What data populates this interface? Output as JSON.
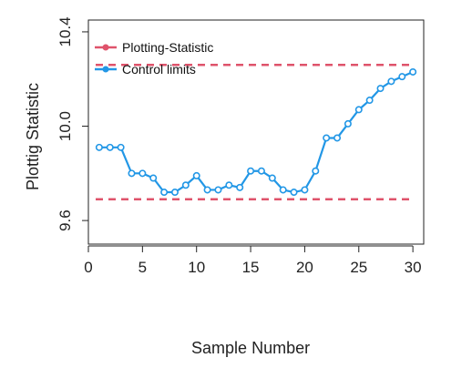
{
  "chart_data": {
    "type": "line",
    "title": "",
    "xlabel": "Sample Number",
    "ylabel": "Plottig Statistic",
    "xlim": [
      0,
      31
    ],
    "ylim": [
      9.5,
      10.45
    ],
    "x_ticks": [
      0,
      5,
      10,
      15,
      20,
      25,
      30
    ],
    "x_tick_labels": [
      "0",
      "5",
      "10",
      "15",
      "20",
      "25",
      "30"
    ],
    "y_ticks": [
      9.6,
      10.0,
      10.4
    ],
    "y_tick_labels": [
      "9.6",
      "10.0",
      "10.4"
    ],
    "grid": false,
    "legend_position": "top-left",
    "legend": [
      {
        "label": "Plotting-Statistic",
        "color": "#df536b"
      },
      {
        "label": "Control limits",
        "color": "#2297e6"
      }
    ],
    "series": [
      {
        "name": "Control limits",
        "color": "#2297e6",
        "x": [
          1,
          2,
          3,
          4,
          5,
          6,
          7,
          8,
          9,
          10,
          11,
          12,
          13,
          14,
          15,
          16,
          17,
          18,
          19,
          20,
          21,
          22,
          23,
          24,
          25,
          26,
          27,
          28,
          29,
          30
        ],
        "values": [
          9.91,
          9.91,
          9.91,
          9.8,
          9.8,
          9.78,
          9.72,
          9.72,
          9.75,
          9.79,
          9.73,
          9.73,
          9.75,
          9.74,
          9.81,
          9.81,
          9.78,
          9.73,
          9.72,
          9.73,
          9.81,
          9.95,
          9.95,
          10.01,
          10.07,
          10.11,
          10.16,
          10.19,
          10.21,
          10.23
        ]
      }
    ],
    "control_limits": {
      "upper": 10.26,
      "lower": 9.69,
      "color": "#df536b",
      "style": "dashed"
    }
  }
}
